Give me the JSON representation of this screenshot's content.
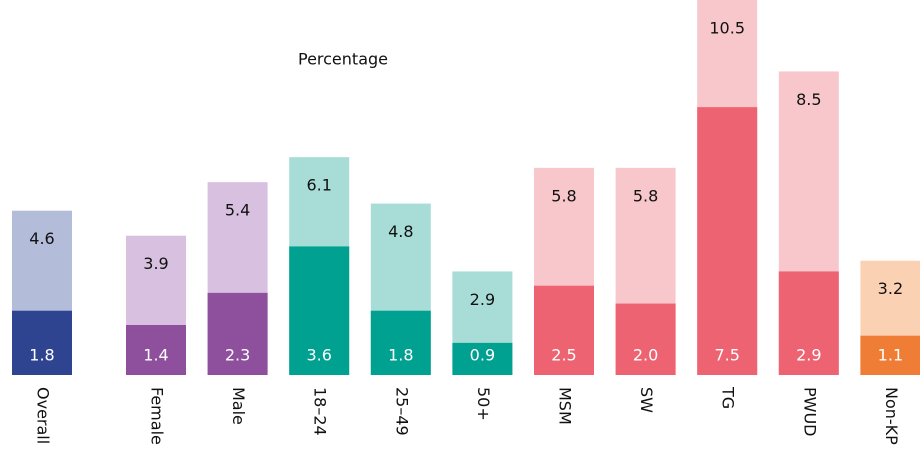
{
  "chart_data": {
    "type": "overlap-bar",
    "title": "Percentage",
    "categories": [
      "Overall",
      "Female",
      "Male",
      "18–24",
      "25–49",
      "50+",
      "MSM",
      "SW",
      "TG",
      "PWUD",
      "Non-KP"
    ],
    "series": [
      {
        "colors": [
          "#b3bcd9",
          "#d8c1e0",
          "#d8c1e0",
          "#a8ddd7",
          "#a8ddd7",
          "#a8ddd7",
          "#f8c7cc",
          "#f8c7cc",
          "#f8c7cc",
          "#f8c7cc",
          "#fbd1b3"
        ],
        "values": [
          4.6,
          3.9,
          5.4,
          6.1,
          4.8,
          2.9,
          5.8,
          5.8,
          10.5,
          8.5,
          3.2
        ]
      },
      {
        "colors": [
          "#2e4491",
          "#8e4f9c",
          "#8e4f9c",
          "#00a190",
          "#00a190",
          "#00a190",
          "#ee6371",
          "#ee6371",
          "#ee6371",
          "#ee6371",
          "#f07d35"
        ],
        "values": [
          1.8,
          1.4,
          2.3,
          3.6,
          1.8,
          0.9,
          2.5,
          2.0,
          7.5,
          2.9,
          1.1
        ],
        "value_labels": [
          "1.8",
          "1.4",
          "2.3",
          "3.6",
          "1.8",
          "0.9",
          "2.5",
          "2.0",
          "7.5",
          "2.9",
          "1.1"
        ]
      }
    ],
    "ylim": [
      0,
      10.5
    ]
  }
}
